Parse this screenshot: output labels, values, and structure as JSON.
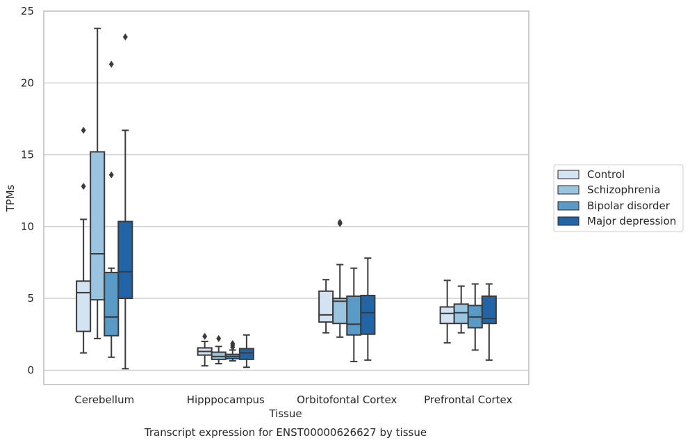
{
  "chart_data": {
    "type": "box",
    "title": "",
    "caption": "Transcript expression for ENST00000626627 by tissue",
    "xlabel": "Tissue",
    "ylabel": "TPMs",
    "ylim": [
      -1,
      25
    ],
    "yticks": [
      0,
      5,
      10,
      15,
      20,
      25
    ],
    "grid": "horizontal",
    "legend_position": "right",
    "categories": [
      "Cerebellum",
      "Hipppocampus",
      "Orbitofontal Cortex",
      "Prefrontal Cortex"
    ],
    "series": [
      {
        "name": "Control",
        "color": "#d4e3f2",
        "boxes": [
          {
            "whislo": 1.2,
            "q1": 2.7,
            "med": 5.4,
            "q3": 6.2,
            "whishi": 10.5,
            "fliers": [
              12.8,
              16.7
            ]
          },
          {
            "whislo": 0.3,
            "q1": 1.05,
            "med": 1.3,
            "q3": 1.55,
            "whishi": 2.0,
            "fliers": [
              2.35
            ]
          },
          {
            "whislo": 2.6,
            "q1": 3.35,
            "med": 3.85,
            "q3": 5.5,
            "whishi": 6.3,
            "fliers": []
          },
          {
            "whislo": 1.9,
            "q1": 3.25,
            "med": 3.95,
            "q3": 4.4,
            "whishi": 6.25,
            "fliers": []
          }
        ]
      },
      {
        "name": "Schizophrenia",
        "color": "#9ac4df",
        "boxes": [
          {
            "whislo": 2.2,
            "q1": 4.9,
            "med": 8.1,
            "q3": 15.2,
            "whishi": 23.8,
            "fliers": []
          },
          {
            "whislo": 0.45,
            "q1": 0.75,
            "med": 0.95,
            "q3": 1.25,
            "whishi": 1.65,
            "fliers": [
              2.2
            ]
          },
          {
            "whislo": 2.3,
            "q1": 3.25,
            "med": 4.8,
            "q3": 5.0,
            "whishi": 7.35,
            "fliers": [
              10.2,
              10.3
            ]
          },
          {
            "whislo": 2.6,
            "q1": 3.25,
            "med": 4.0,
            "q3": 4.6,
            "whishi": 5.85,
            "fliers": []
          }
        ]
      },
      {
        "name": "Bipolar disorder",
        "color": "#5a9ac7",
        "boxes": [
          {
            "whislo": 0.9,
            "q1": 2.4,
            "med": 3.7,
            "q3": 6.8,
            "whishi": 7.1,
            "fliers": [
              13.6,
              21.3
            ]
          },
          {
            "whislo": 0.65,
            "q1": 0.8,
            "med": 0.95,
            "q3": 1.1,
            "whishi": 1.4,
            "fliers": [
              1.6,
              1.75,
              1.85
            ]
          },
          {
            "whislo": 0.6,
            "q1": 2.45,
            "med": 3.2,
            "q3": 5.15,
            "whishi": 7.1,
            "fliers": []
          },
          {
            "whislo": 1.4,
            "q1": 2.95,
            "med": 3.7,
            "q3": 4.5,
            "whishi": 6.0,
            "fliers": []
          }
        ]
      },
      {
        "name": "Major depression",
        "color": "#2364a6",
        "boxes": [
          {
            "whislo": 0.1,
            "q1": 5.0,
            "med": 6.85,
            "q3": 10.35,
            "whishi": 16.7,
            "fliers": [
              23.2
            ]
          },
          {
            "whislo": 0.2,
            "q1": 0.75,
            "med": 1.2,
            "q3": 1.5,
            "whishi": 2.45,
            "fliers": []
          },
          {
            "whislo": 0.7,
            "q1": 2.5,
            "med": 4.0,
            "q3": 5.2,
            "whishi": 7.8,
            "fliers": []
          },
          {
            "whislo": 0.7,
            "q1": 3.25,
            "med": 3.6,
            "q3": 5.15,
            "whishi": 6.0,
            "fliers": []
          }
        ]
      }
    ]
  }
}
